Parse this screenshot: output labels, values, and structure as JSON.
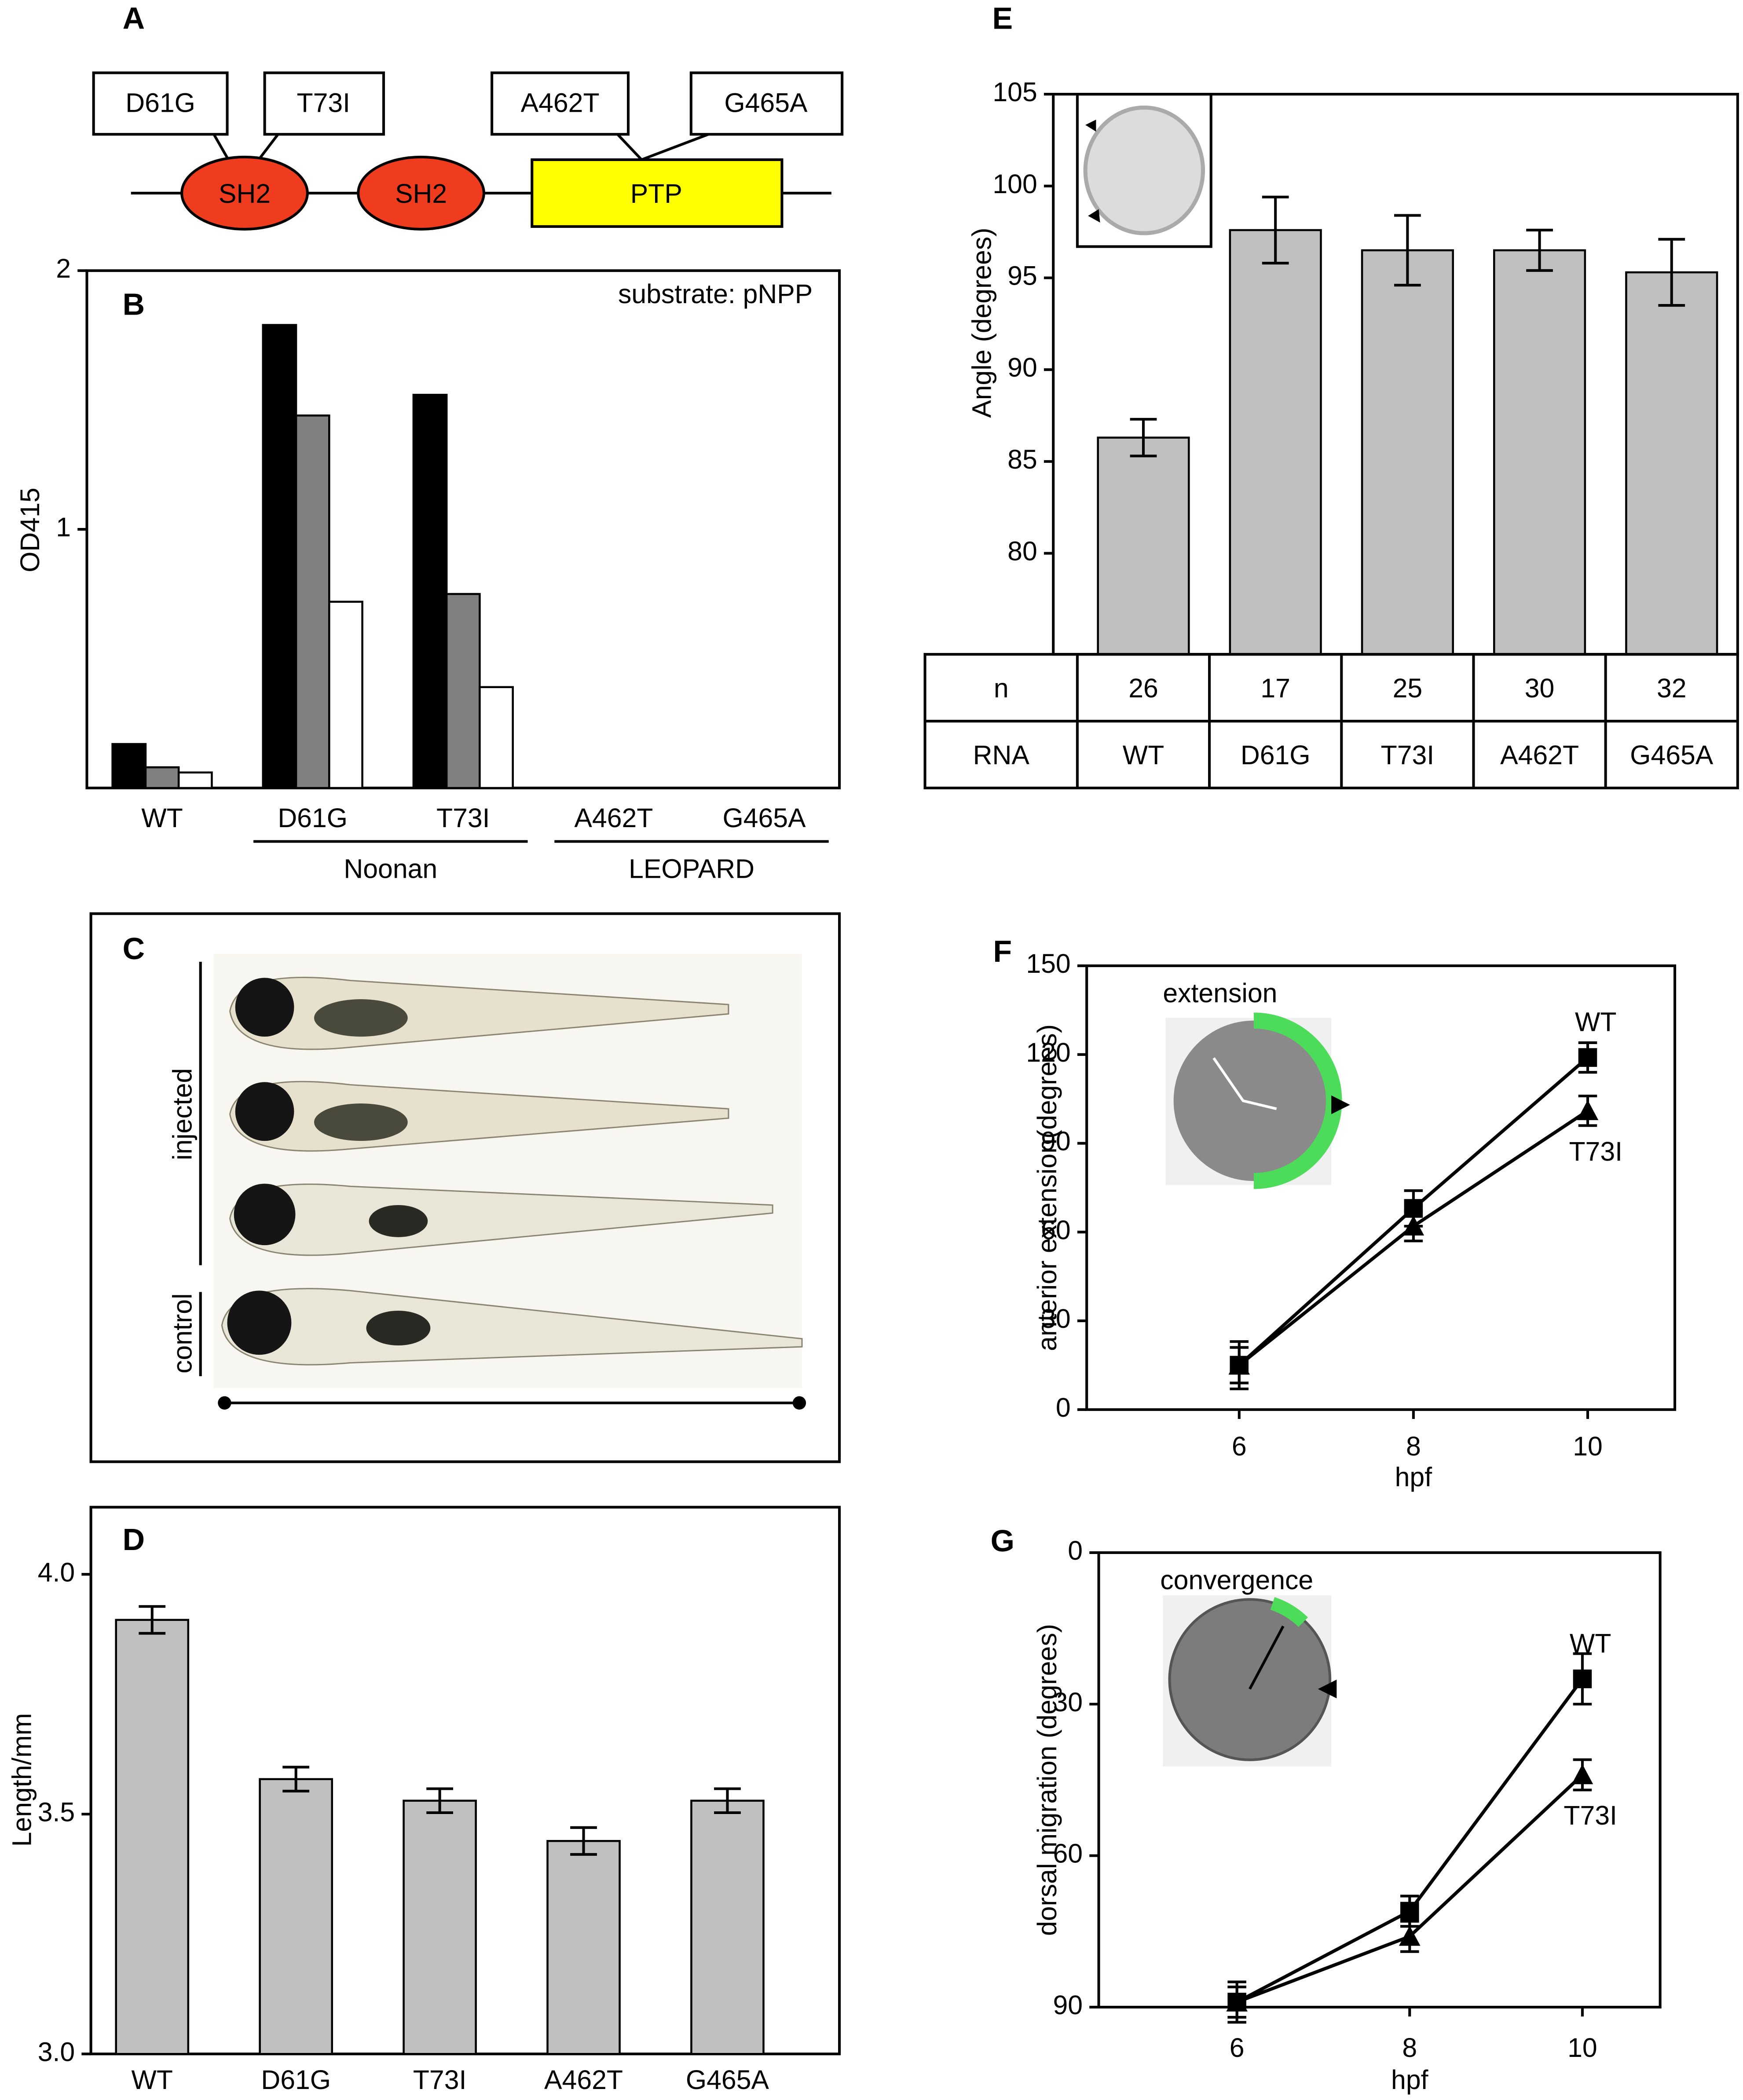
{
  "diagram": {
    "title": "A",
    "domains": [
      "SH2",
      "SH2",
      "PTP"
    ],
    "mutations": [
      "D61G",
      "T73I",
      "A462T",
      "G465A"
    ]
  },
  "image_panel": {
    "title": "C",
    "labels": [
      "injected",
      "control"
    ]
  },
  "chart_data": [
    {
      "type": "bar",
      "title": "B",
      "annotation": "substrate: pNPP",
      "ylabel": "OD415",
      "categories": [
        "WT",
        "D61G",
        "T73I",
        "A462T",
        "G465A"
      ],
      "group_labels": [
        "Noonan",
        "LEOPARD"
      ],
      "series": [
        {
          "color": "#000000",
          "values": [
            0.17,
            1.79,
            1.52,
            0,
            0
          ]
        },
        {
          "color": "#808080",
          "values": [
            0.08,
            1.44,
            0.75,
            0,
            0
          ]
        },
        {
          "color": "#ffffff",
          "values": [
            0.06,
            0.72,
            0.39,
            0,
            0
          ]
        }
      ],
      "ylim": [
        0,
        2
      ],
      "yticks": [
        1,
        2
      ]
    },
    {
      "type": "bar",
      "title": "E",
      "ylabel": "Angle (degrees)",
      "categories": [
        "WT",
        "D61G",
        "T73I",
        "A462T",
        "G465A"
      ],
      "values": [
        86.3,
        97.6,
        96.5,
        96.5,
        95.3
      ],
      "errors": [
        1.0,
        1.8,
        1.9,
        1.1,
        1.8
      ],
      "color": "#c0c0c0",
      "ylim": [
        74.5,
        105
      ],
      "yticks": [
        80,
        85,
        90,
        95,
        100,
        105
      ],
      "table": {
        "row_labels": [
          "n",
          "RNA"
        ],
        "n": [
          26,
          17,
          25,
          30,
          32
        ]
      }
    },
    {
      "type": "bar",
      "title": "D",
      "ylabel": "Length/mm",
      "categories": [
        "WT",
        "D61G",
        "T73I",
        "A462T",
        "G465A"
      ],
      "values": [
        3.905,
        3.573,
        3.528,
        3.444,
        3.528
      ],
      "errors": [
        0.028,
        0.025,
        0.025,
        0.028,
        0.025
      ],
      "color": "#c0c0c0",
      "ylim": [
        3,
        4.14
      ],
      "yticks": [
        {
          "value": 3,
          "label": "3.0"
        },
        3.5,
        {
          "value": 4,
          "label": "4.0"
        }
      ]
    },
    {
      "type": "line",
      "title": "F",
      "annotation": "extension",
      "xlabel": "hpf",
      "ylabel": "anterior extension(degrees)",
      "x": [
        6,
        8,
        10
      ],
      "series": [
        {
          "name": "WT",
          "color": "#000000",
          "marker": "square",
          "values": [
            15,
            68,
            119
          ],
          "errors": [
            8,
            6,
            5
          ]
        },
        {
          "name": "T73I",
          "color": "#000000",
          "marker": "triangle",
          "values": [
            15,
            62,
            101
          ],
          "errors": [
            6,
            5,
            5
          ]
        }
      ],
      "xlim": [
        4.25,
        11
      ],
      "xticks": [
        6,
        8,
        10
      ],
      "ylim": [
        0,
        150
      ],
      "yticks": [
        0,
        30,
        60,
        90,
        120,
        150
      ]
    },
    {
      "type": "line",
      "title": "G",
      "annotation": "convergence",
      "xlabel": "hpf",
      "ylabel": "dorsal migration (degrees)",
      "x": [
        6,
        8,
        10
      ],
      "series": [
        {
          "name": "WT",
          "color": "#000000",
          "marker": "square",
          "values": [
            89,
            71,
            25
          ],
          "errors": [
            4,
            3,
            5
          ]
        },
        {
          "name": "T73I",
          "color": "#000000",
          "marker": "triangle",
          "values": [
            89,
            76,
            44
          ],
          "errors": [
            3,
            3,
            3
          ]
        }
      ],
      "xlim": [
        4.4,
        10.9
      ],
      "xticks": [
        6,
        8,
        10
      ],
      "ylim": [
        0,
        90
      ],
      "y_inverted": true,
      "yticks": [
        0,
        30,
        60,
        90
      ]
    }
  ]
}
